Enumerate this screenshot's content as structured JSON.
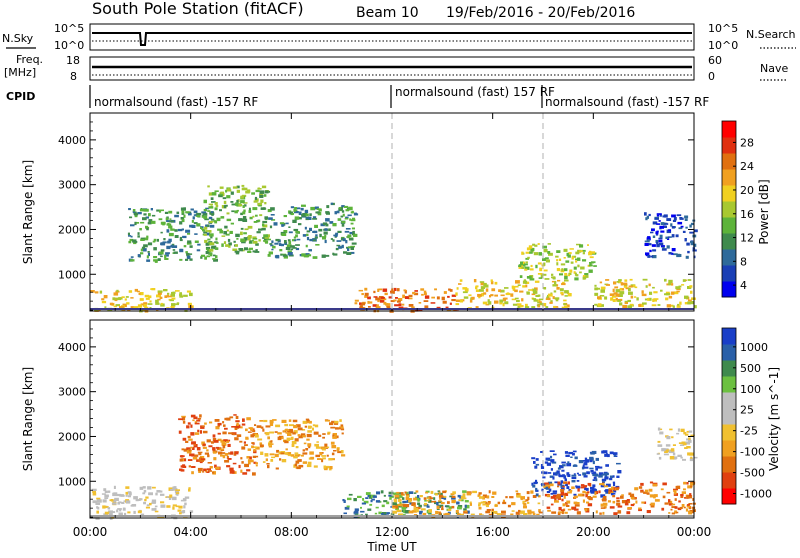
{
  "header": {
    "station": "South Pole Station (fitACF)",
    "beam": "Beam 10",
    "dates": "19/Feb/2016 - 20/Feb/2016"
  },
  "noise_panel": {
    "left_label": "N.Sky",
    "left_ticks": [
      "10^5",
      "10^0"
    ],
    "right_ticks": [
      "10^5",
      "10^0"
    ],
    "right_label": "N.Search"
  },
  "freq_panel": {
    "left_label_1": "Freq.",
    "left_label_2": "[MHz]",
    "left_ticks": [
      "18",
      "8"
    ],
    "right_ticks": [
      "60",
      "0"
    ],
    "right_label": "Nave"
  },
  "cpid_panel": {
    "label": "CPID",
    "segments": [
      {
        "text": "normalsound (fast) -157 RF",
        "start_hour": 0
      },
      {
        "text": "normalsound (fast) 157 RF",
        "start_hour": 12
      },
      {
        "text": "normalsound (fast) -157 RF",
        "start_hour": 18
      }
    ]
  },
  "chart_data": [
    {
      "type": "heatmap",
      "name": "power",
      "ylabel": "Slant Range [km]",
      "y_ticks": [
        1000,
        2000,
        3000,
        4000
      ],
      "ylim": [
        180,
        4600
      ],
      "x_range_hours": [
        0,
        24
      ],
      "colorbar_label": "Power [dB]",
      "colorbar_ticks": [
        "28",
        "24",
        "20",
        "16",
        "12",
        "8",
        "4"
      ],
      "colors": [
        "#0000ee",
        "#1a3fb5",
        "#2e6a9a",
        "#3f8a4d",
        "#5db33a",
        "#a8c830",
        "#f0d020",
        "#f0a020",
        "#e07010",
        "#e03010",
        "#ff0000"
      ],
      "echo_regions": [
        {
          "t0": 0.0,
          "t1": 4.0,
          "r0": 200,
          "r1": 700,
          "color_index": 6
        },
        {
          "t0": 1.5,
          "t1": 5.0,
          "r0": 1300,
          "r1": 2500,
          "color_index": 3
        },
        {
          "t0": 4.5,
          "t1": 7.0,
          "r0": 1500,
          "r1": 3000,
          "color_index": 4
        },
        {
          "t0": 7.0,
          "t1": 10.5,
          "r0": 1400,
          "r1": 2600,
          "color_index": 3
        },
        {
          "t0": 10.5,
          "t1": 14.5,
          "r0": 200,
          "r1": 700,
          "color_index": 8
        },
        {
          "t0": 14.5,
          "t1": 19.0,
          "r0": 250,
          "r1": 900,
          "color_index": 6
        },
        {
          "t0": 17.0,
          "t1": 20.0,
          "r0": 900,
          "r1": 1700,
          "color_index": 5
        },
        {
          "t0": 20.0,
          "t1": 24.0,
          "r0": 300,
          "r1": 900,
          "color_index": 6
        },
        {
          "t0": 22.0,
          "t1": 24.0,
          "r0": 1400,
          "r1": 2400,
          "color_index": 1
        }
      ]
    },
    {
      "type": "heatmap",
      "name": "velocity",
      "ylabel": "Slant Range [km]",
      "y_ticks": [
        1000,
        2000,
        3000,
        4000
      ],
      "ylim": [
        180,
        4600
      ],
      "x_range_hours": [
        0,
        24
      ],
      "colorbar_label": "Velocity [m s^-1]",
      "colorbar_ticks": [
        "1000",
        "500",
        "100",
        "25",
        "-25",
        "-100",
        "-500",
        "-1000"
      ],
      "colors": [
        "#1a3fc8",
        "#2a60a8",
        "#3f8a4d",
        "#6cc040",
        "#bebebe",
        "#bebebe",
        "#f0c030",
        "#f0a020",
        "#e07010",
        "#e04010",
        "#ff0000"
      ],
      "echo_regions": [
        {
          "t0": 0.0,
          "t1": 4.0,
          "r0": 200,
          "r1": 900,
          "color_index": 5
        },
        {
          "t0": 3.5,
          "t1": 6.5,
          "r0": 1200,
          "r1": 2500,
          "color_index": 8
        },
        {
          "t0": 6.5,
          "t1": 10.0,
          "r0": 1300,
          "r1": 2400,
          "color_index": 7
        },
        {
          "t0": 10.0,
          "t1": 15.0,
          "r0": 250,
          "r1": 800,
          "color_index": 2
        },
        {
          "t0": 12.0,
          "t1": 18.0,
          "r0": 250,
          "r1": 800,
          "color_index": 7
        },
        {
          "t0": 17.5,
          "t1": 21.0,
          "r0": 700,
          "r1": 1700,
          "color_index": 0
        },
        {
          "t0": 18.0,
          "t1": 24.0,
          "r0": 300,
          "r1": 1000,
          "color_index": 8
        },
        {
          "t0": 22.5,
          "t1": 24.0,
          "r0": 1500,
          "r1": 2200,
          "color_index": 5
        }
      ]
    }
  ],
  "x_axis": {
    "ticks": [
      "00:00",
      "04:00",
      "08:00",
      "12:00",
      "16:00",
      "20:00",
      "00:00"
    ],
    "label": "Time UT"
  }
}
